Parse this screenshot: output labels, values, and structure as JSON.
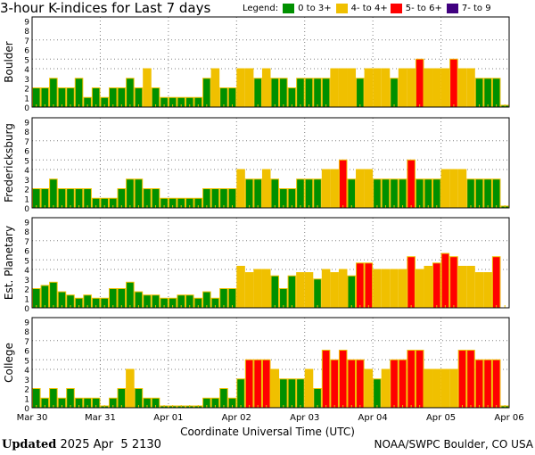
{
  "chart_data": {
    "type": "bar",
    "title": "3-hour K-indices for Last 7 days",
    "legend": {
      "label": "Legend:",
      "placement": "top-right",
      "entries": [
        {
          "label": "0 to 3+",
          "color": "#009000"
        },
        {
          "label": "4- to 4+",
          "color": "#f0c000"
        },
        {
          "label": "5- to 6+",
          "color": "#ff0000"
        },
        {
          "label": "7- to 9",
          "color": "#400080"
        }
      ]
    },
    "xlabel": "Coordinate Universal Time (UTC)",
    "x_tick_labels": [
      "Mar 30",
      "Mar 31",
      "Apr 01",
      "Apr 02",
      "Apr 03",
      "Apr 04",
      "Apr 05",
      "Apr 06"
    ],
    "y_tick_labels": [
      "0",
      "1",
      "2",
      "3",
      "4",
      "5",
      "6",
      "7",
      "8",
      "9"
    ],
    "ylim": [
      0,
      9
    ],
    "gridlines_y": [
      4,
      5,
      7
    ],
    "bars_per_day": 8,
    "panels": [
      {
        "name": "Boulder",
        "values": [
          2,
          2,
          3,
          2,
          2,
          3,
          1,
          2,
          1,
          2,
          2,
          3,
          2,
          4,
          2,
          1,
          1,
          1,
          1,
          1,
          3,
          4,
          2,
          2,
          4,
          4,
          3,
          4,
          3,
          3,
          2,
          3,
          3,
          3,
          3,
          4,
          4,
          4,
          3,
          4,
          4,
          4,
          3,
          4,
          4,
          5,
          4,
          4,
          4,
          5,
          4,
          4,
          3,
          3,
          3,
          0
        ]
      },
      {
        "name": "Fredericksburg",
        "values": [
          2,
          2,
          3,
          2,
          2,
          2,
          2,
          1,
          1,
          1,
          2,
          3,
          3,
          2,
          2,
          1,
          1,
          1,
          1,
          1,
          2,
          2,
          2,
          2,
          4,
          3,
          3,
          4,
          3,
          2,
          2,
          3,
          3,
          3,
          4,
          4,
          5,
          3,
          4,
          4,
          3,
          3,
          3,
          3,
          5,
          3,
          3,
          3,
          4,
          4,
          4,
          3,
          3,
          3,
          3,
          0
        ]
      },
      {
        "name": "Est. Planetary",
        "values": [
          2,
          2.33,
          2.67,
          1.67,
          1.33,
          1,
          1.33,
          1,
          1,
          2,
          2,
          2.67,
          1.67,
          1.33,
          1.33,
          1,
          1,
          1.33,
          1.33,
          1,
          1.67,
          1,
          2,
          2,
          4.33,
          3.67,
          4,
          4,
          3.33,
          2,
          3.33,
          3.67,
          3.67,
          3,
          4,
          3.67,
          4,
          3.33,
          4.67,
          4.67,
          4,
          4,
          4,
          4,
          5.33,
          4,
          4.33,
          4.67,
          5.67,
          5.33,
          4.33,
          4.33,
          3.67,
          3.67,
          5.33,
          null
        ]
      },
      {
        "name": "College",
        "values": [
          2,
          1,
          2,
          1,
          2,
          1,
          1,
          1,
          0,
          1,
          2,
          4,
          2,
          1,
          1,
          0,
          0,
          0,
          0,
          0,
          1,
          1,
          2,
          1,
          3,
          5,
          5,
          5,
          4,
          3,
          3,
          3,
          4,
          2,
          6,
          5,
          6,
          5,
          5,
          4,
          3,
          4,
          5,
          5,
          6,
          6,
          4,
          4,
          4,
          4,
          6,
          6,
          5,
          5,
          5,
          0
        ]
      }
    ]
  },
  "footer": {
    "updated_label": "Updated",
    "updated_value": " 2025 Apr  5 2130",
    "credit": "NOAA/SWPC Boulder, CO USA"
  },
  "colors": {
    "green": "#009000",
    "yellow": "#f0c000",
    "red": "#ff0000",
    "purple": "#400080",
    "edge": "#f0c000",
    "grid": "#808080"
  }
}
